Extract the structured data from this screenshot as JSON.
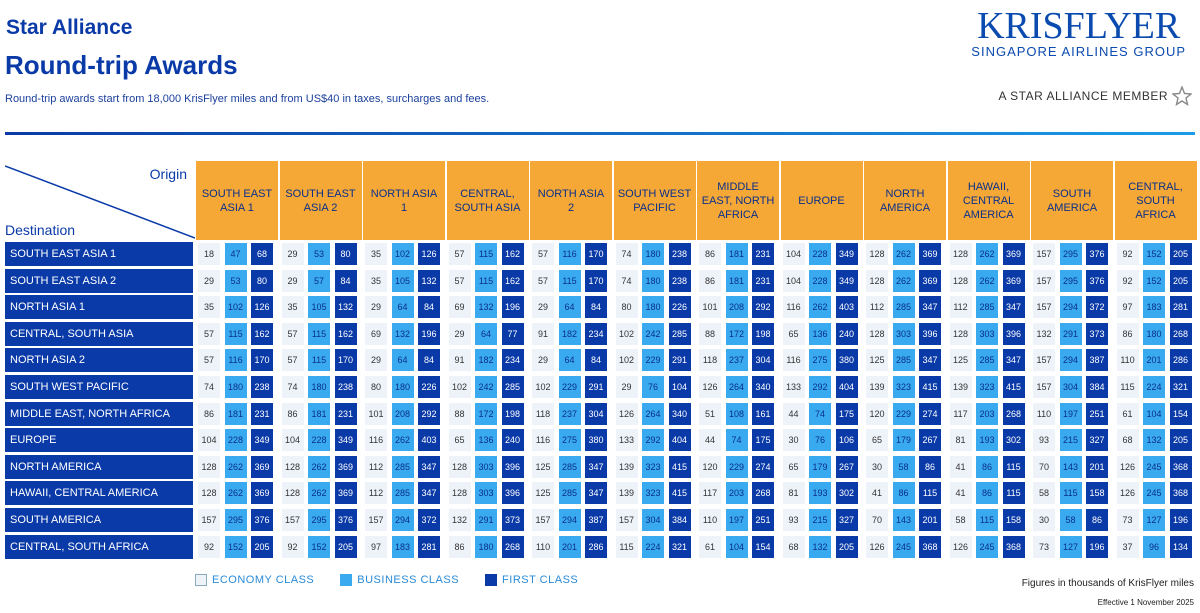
{
  "header": {
    "title_top": "Star Alliance",
    "title_main": "Round-trip Awards",
    "subtitle": "Round-trip awards start from 18,000 KrisFlyer miles and from US$40 in taxes, surcharges and fees."
  },
  "logo": {
    "brand": "KRISFLYER",
    "group": "SINGAPORE AIRLINES GROUP",
    "alliance": "A STAR ALLIANCE MEMBER"
  },
  "corner": {
    "origin": "Origin",
    "destination": "Destination"
  },
  "origins": [
    "SOUTH EAST ASIA 1",
    "SOUTH EAST ASIA 2",
    "NORTH ASIA 1",
    "CENTRAL, SOUTH ASIA",
    "NORTH ASIA 2",
    "SOUTH WEST PACIFIC",
    "MIDDLE EAST, NORTH AFRICA",
    "EUROPE",
    "NORTH AMERICA",
    "HAWAII, CENTRAL AMERICA",
    "SOUTH AMERICA",
    "CENTRAL, SOUTH AFRICA"
  ],
  "destinations": [
    "SOUTH EAST ASIA 1",
    "SOUTH EAST ASIA 2",
    "NORTH ASIA 1",
    "CENTRAL, SOUTH ASIA",
    "NORTH ASIA 2",
    "SOUTH WEST PACIFIC",
    "MIDDLE EAST, NORTH AFRICA",
    "EUROPE",
    "NORTH AMERICA",
    "HAWAII, CENTRAL AMERICA",
    "SOUTH AMERICA",
    "CENTRAL, SOUTH AFRICA"
  ],
  "rows": [
    [
      [
        18,
        47,
        68
      ],
      [
        29,
        53,
        80
      ],
      [
        35,
        102,
        126
      ],
      [
        57,
        115,
        162
      ],
      [
        57,
        116,
        170
      ],
      [
        74,
        180,
        238
      ],
      [
        86,
        181,
        231
      ],
      [
        104,
        228,
        349
      ],
      [
        128,
        262,
        369
      ],
      [
        128,
        262,
        369
      ],
      [
        157,
        295,
        376
      ],
      [
        92,
        152,
        205
      ]
    ],
    [
      [
        29,
        53,
        80
      ],
      [
        29,
        57,
        84
      ],
      [
        35,
        105,
        132
      ],
      [
        57,
        115,
        162
      ],
      [
        57,
        115,
        170
      ],
      [
        74,
        180,
        238
      ],
      [
        86,
        181,
        231
      ],
      [
        104,
        228,
        349
      ],
      [
        128,
        262,
        369
      ],
      [
        128,
        262,
        369
      ],
      [
        157,
        295,
        376
      ],
      [
        92,
        152,
        205
      ]
    ],
    [
      [
        35,
        102,
        126
      ],
      [
        35,
        105,
        132
      ],
      [
        29,
        64,
        84
      ],
      [
        69,
        132,
        196
      ],
      [
        29,
        64,
        84
      ],
      [
        80,
        180,
        226
      ],
      [
        101,
        208,
        292
      ],
      [
        116,
        262,
        403
      ],
      [
        112,
        285,
        347
      ],
      [
        112,
        285,
        347
      ],
      [
        157,
        294,
        372
      ],
      [
        97,
        183,
        281
      ]
    ],
    [
      [
        57,
        115,
        162
      ],
      [
        57,
        115,
        162
      ],
      [
        69,
        132,
        196
      ],
      [
        29,
        64,
        77
      ],
      [
        91,
        182,
        234
      ],
      [
        102,
        242,
        285
      ],
      [
        88,
        172,
        198
      ],
      [
        65,
        136,
        240
      ],
      [
        128,
        303,
        396
      ],
      [
        128,
        303,
        396
      ],
      [
        132,
        291,
        373
      ],
      [
        86,
        180,
        268
      ]
    ],
    [
      [
        57,
        116,
        170
      ],
      [
        57,
        115,
        170
      ],
      [
        29,
        64,
        84
      ],
      [
        91,
        182,
        234
      ],
      [
        29,
        64,
        84
      ],
      [
        102,
        229,
        291
      ],
      [
        118,
        237,
        304
      ],
      [
        116,
        275,
        380
      ],
      [
        125,
        285,
        347
      ],
      [
        125,
        285,
        347
      ],
      [
        157,
        294,
        387
      ],
      [
        110,
        201,
        286
      ]
    ],
    [
      [
        74,
        180,
        238
      ],
      [
        74,
        180,
        238
      ],
      [
        80,
        180,
        226
      ],
      [
        102,
        242,
        285
      ],
      [
        102,
        229,
        291
      ],
      [
        29,
        76,
        104
      ],
      [
        126,
        264,
        340
      ],
      [
        133,
        292,
        404
      ],
      [
        139,
        323,
        415
      ],
      [
        139,
        323,
        415
      ],
      [
        157,
        304,
        384
      ],
      [
        115,
        224,
        321
      ]
    ],
    [
      [
        86,
        181,
        231
      ],
      [
        86,
        181,
        231
      ],
      [
        101,
        208,
        292
      ],
      [
        88,
        172,
        198
      ],
      [
        118,
        237,
        304
      ],
      [
        126,
        264,
        340
      ],
      [
        51,
        108,
        161
      ],
      [
        44,
        74,
        175
      ],
      [
        120,
        229,
        274
      ],
      [
        117,
        203,
        268
      ],
      [
        110,
        197,
        251
      ],
      [
        61,
        104,
        154
      ]
    ],
    [
      [
        104,
        228,
        349
      ],
      [
        104,
        228,
        349
      ],
      [
        116,
        262,
        403
      ],
      [
        65,
        136,
        240
      ],
      [
        116,
        275,
        380
      ],
      [
        133,
        292,
        404
      ],
      [
        44,
        74,
        175
      ],
      [
        30,
        76,
        106
      ],
      [
        65,
        179,
        267
      ],
      [
        81,
        193,
        302
      ],
      [
        93,
        215,
        327
      ],
      [
        68,
        132,
        205
      ]
    ],
    [
      [
        128,
        262,
        369
      ],
      [
        128,
        262,
        369
      ],
      [
        112,
        285,
        347
      ],
      [
        128,
        303,
        396
      ],
      [
        125,
        285,
        347
      ],
      [
        139,
        323,
        415
      ],
      [
        120,
        229,
        274
      ],
      [
        65,
        179,
        267
      ],
      [
        30,
        58,
        86
      ],
      [
        41,
        86,
        115
      ],
      [
        70,
        143,
        201
      ],
      [
        126,
        245,
        368
      ]
    ],
    [
      [
        128,
        262,
        369
      ],
      [
        128,
        262,
        369
      ],
      [
        112,
        285,
        347
      ],
      [
        128,
        303,
        396
      ],
      [
        125,
        285,
        347
      ],
      [
        139,
        323,
        415
      ],
      [
        117,
        203,
        268
      ],
      [
        81,
        193,
        302
      ],
      [
        41,
        86,
        115
      ],
      [
        41,
        86,
        115
      ],
      [
        58,
        115,
        158
      ],
      [
        126,
        245,
        368
      ]
    ],
    [
      [
        157,
        295,
        376
      ],
      [
        157,
        295,
        376
      ],
      [
        157,
        294,
        372
      ],
      [
        132,
        291,
        373
      ],
      [
        157,
        294,
        387
      ],
      [
        157,
        304,
        384
      ],
      [
        110,
        197,
        251
      ],
      [
        93,
        215,
        327
      ],
      [
        70,
        143,
        201
      ],
      [
        58,
        115,
        158
      ],
      [
        30,
        58,
        86
      ],
      [
        73,
        127,
        196
      ]
    ],
    [
      [
        92,
        152,
        205
      ],
      [
        92,
        152,
        205
      ],
      [
        97,
        183,
        281
      ],
      [
        86,
        180,
        268
      ],
      [
        110,
        201,
        286
      ],
      [
        115,
        224,
        321
      ],
      [
        61,
        104,
        154
      ],
      [
        68,
        132,
        205
      ],
      [
        126,
        245,
        368
      ],
      [
        126,
        245,
        368
      ],
      [
        73,
        127,
        196
      ],
      [
        37,
        96,
        134
      ]
    ]
  ],
  "legend": {
    "economy": "ECONOMY CLASS",
    "business": "BUSINESS CLASS",
    "first": "FIRST CLASS",
    "colors": {
      "economy": "#eef3fa",
      "business": "#3aaaf0",
      "first": "#0a3aa8",
      "header": "#f5a835"
    }
  },
  "footer": {
    "note": "Figures in thousands of KrisFlyer miles",
    "effective": "Effective 1 November 2025"
  }
}
